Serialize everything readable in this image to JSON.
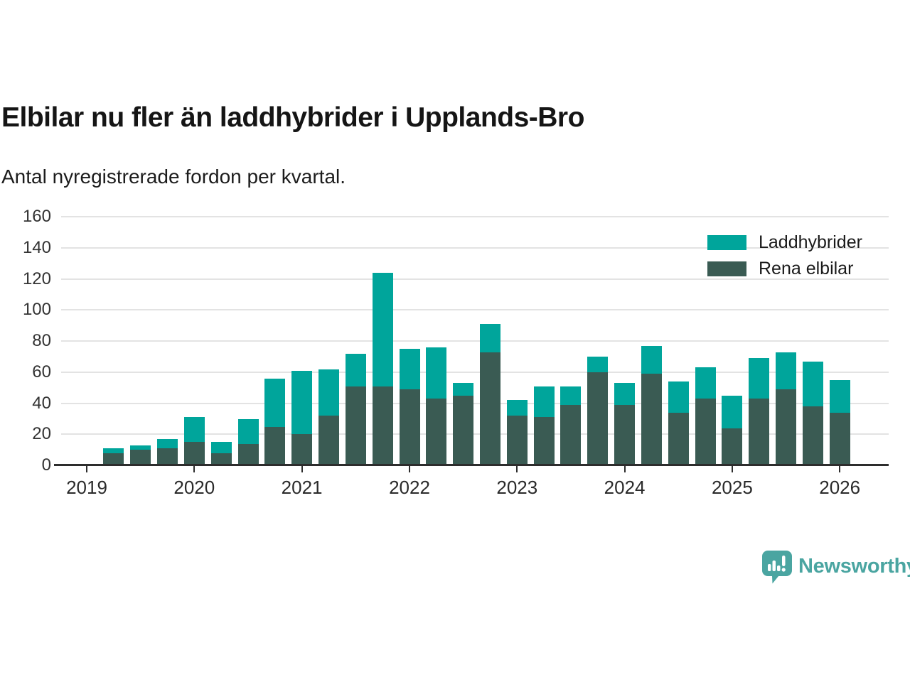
{
  "page": {
    "background": "#ffffff"
  },
  "header": {
    "title": "Elbilar nu fler än laddhybrider i Upplands-Bro",
    "subtitle": "Antal nyregistrerade fordon per kvartal."
  },
  "legend": {
    "items": [
      {
        "label": "Laddhybrider",
        "color": "#00a59b"
      },
      {
        "label": "Rena elbilar",
        "color": "#3a5b53"
      }
    ]
  },
  "logo": {
    "text": "Newsworthy",
    "color": "#4aa5a1",
    "icon": "newsworthy-logo-icon"
  },
  "colors": {
    "laddhybrider": "#00a59b",
    "rena_elbilar": "#3a5b53",
    "gridline": "#e3e3e3",
    "axis": "#2d2d2d",
    "text": "#1c1c1c"
  },
  "chart_data": {
    "type": "bar",
    "stacked": true,
    "title": "Elbilar nu fler än laddhybrider i Upplands-Bro",
    "subtitle": "Antal nyregistrerade fordon per kvartal.",
    "xlabel": "",
    "ylabel": "",
    "ylim": [
      0,
      160
    ],
    "yticks": [
      0,
      20,
      40,
      60,
      80,
      100,
      120,
      140,
      160
    ],
    "xticks": [
      2019,
      2020,
      2021,
      2022,
      2023,
      2024,
      2025,
      2026
    ],
    "grid": "horizontal",
    "legend_position": "top-right",
    "categories": [
      "2019 Q2",
      "2019 Q3",
      "2019 Q4",
      "2020 Q1",
      "2020 Q2",
      "2020 Q3",
      "2020 Q4",
      "2021 Q1",
      "2021 Q2",
      "2021 Q3",
      "2021 Q4",
      "2022 Q1",
      "2022 Q2",
      "2022 Q3",
      "2022 Q4",
      "2023 Q1",
      "2023 Q2",
      "2023 Q3",
      "2023 Q4",
      "2024 Q1",
      "2024 Q2",
      "2024 Q3",
      "2024 Q4",
      "2025 Q1",
      "2025 Q2",
      "2025 Q3",
      "2025 Q4",
      "2026 Q1"
    ],
    "series": [
      {
        "name": "Laddhybrider",
        "color": "#00a59b",
        "stack_order": "top",
        "values": [
          3,
          3,
          6,
          16,
          7,
          16,
          31,
          41,
          30,
          21,
          73,
          26,
          33,
          8,
          18,
          10,
          20,
          12,
          10,
          14,
          18,
          20,
          20,
          21,
          26,
          24,
          29,
          21
        ]
      },
      {
        "name": "Rena elbilar",
        "color": "#3a5b53",
        "stack_order": "bottom",
        "values": [
          7,
          9,
          10,
          14,
          7,
          13,
          24,
          19,
          31,
          50,
          50,
          48,
          42,
          44,
          72,
          31,
          30,
          38,
          59,
          38,
          58,
          33,
          42,
          23,
          42,
          48,
          37,
          33
        ]
      }
    ]
  }
}
